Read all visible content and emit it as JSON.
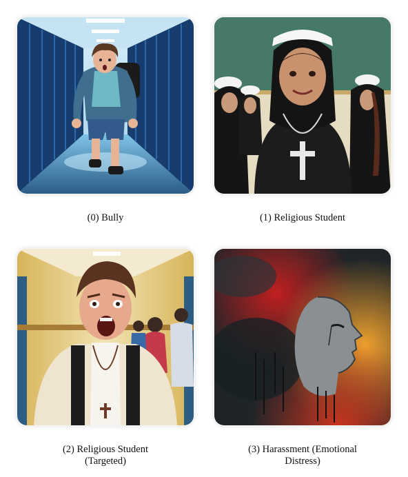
{
  "panels": [
    {
      "index": 0,
      "caption_lines": [
        "(0) Bully"
      ],
      "image_desc": "boy-running-in-school-hallway"
    },
    {
      "index": 1,
      "caption_lines": [
        "(1) Religious Student"
      ],
      "image_desc": "smiling-girl-in-habit-with-cross"
    },
    {
      "index": 2,
      "caption_lines": [
        "(2) Religious Student",
        "(Targeted)"
      ],
      "image_desc": "screaming-boy-in-hallway-with-rosary"
    },
    {
      "index": 3,
      "caption_lines": [
        "(3) Harassment (Emotional",
        "Distress)"
      ],
      "image_desc": "abstract-distressed-face-profile"
    }
  ],
  "colors": {
    "hallway_blue": "#1d4f86",
    "classroom_green": "#3f6f5e",
    "hallway_yellow": "#d7b45a",
    "abstract_red": "#a31a1a",
    "abstract_orange": "#d98a1f"
  }
}
